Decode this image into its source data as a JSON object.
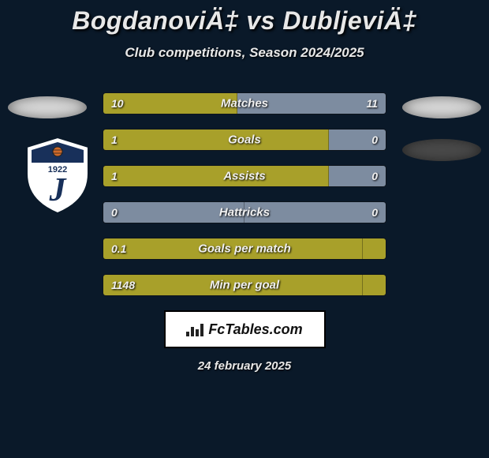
{
  "title": "BogdanoviÄ‡ vs DubljeviÄ‡",
  "subtitle": "Club competitions, Season 2024/2025",
  "date_text": "24 february 2025",
  "brand_text": "FcTables.com",
  "colors": {
    "background": "#0a1929",
    "bar_left_fill": "#a8a02a",
    "bar_right_fill_a": "#7d8ca0",
    "bar_right_fill_b": "#a8a02a",
    "bar_neutral": "#7d8ca0",
    "text": "#f0f0f0",
    "brand_bg": "#ffffff",
    "brand_border": "#000000"
  },
  "badge": {
    "outer": "#ffffff",
    "inner_top": "#18305a",
    "inner_bottom": "#e8e8e8",
    "year": "1922",
    "letter": "J"
  },
  "rows": [
    {
      "label": "Matches",
      "left_val": "10",
      "right_val": "11",
      "left_pct": 47.6,
      "right_pct": 52.4,
      "left_color": "#a8a02a",
      "right_color": "#7d8ca0"
    },
    {
      "label": "Goals",
      "left_val": "1",
      "right_val": "0",
      "left_pct": 80.0,
      "right_pct": 20.0,
      "left_color": "#a8a02a",
      "right_color": "#7d8ca0"
    },
    {
      "label": "Assists",
      "left_val": "1",
      "right_val": "0",
      "left_pct": 80.0,
      "right_pct": 20.0,
      "left_color": "#a8a02a",
      "right_color": "#7d8ca0"
    },
    {
      "label": "Hattricks",
      "left_val": "0",
      "right_val": "0",
      "left_pct": 50.0,
      "right_pct": 50.0,
      "left_color": "#7d8ca0",
      "right_color": "#7d8ca0"
    },
    {
      "label": "Goals per match",
      "left_val": "0.1",
      "right_val": "",
      "left_pct": 92.0,
      "right_pct": 8.0,
      "left_color": "#a8a02a",
      "right_color": "#a8a02a"
    },
    {
      "label": "Min per goal",
      "left_val": "1148",
      "right_val": "",
      "left_pct": 92.0,
      "right_pct": 8.0,
      "left_color": "#a8a02a",
      "right_color": "#a8a02a"
    }
  ]
}
